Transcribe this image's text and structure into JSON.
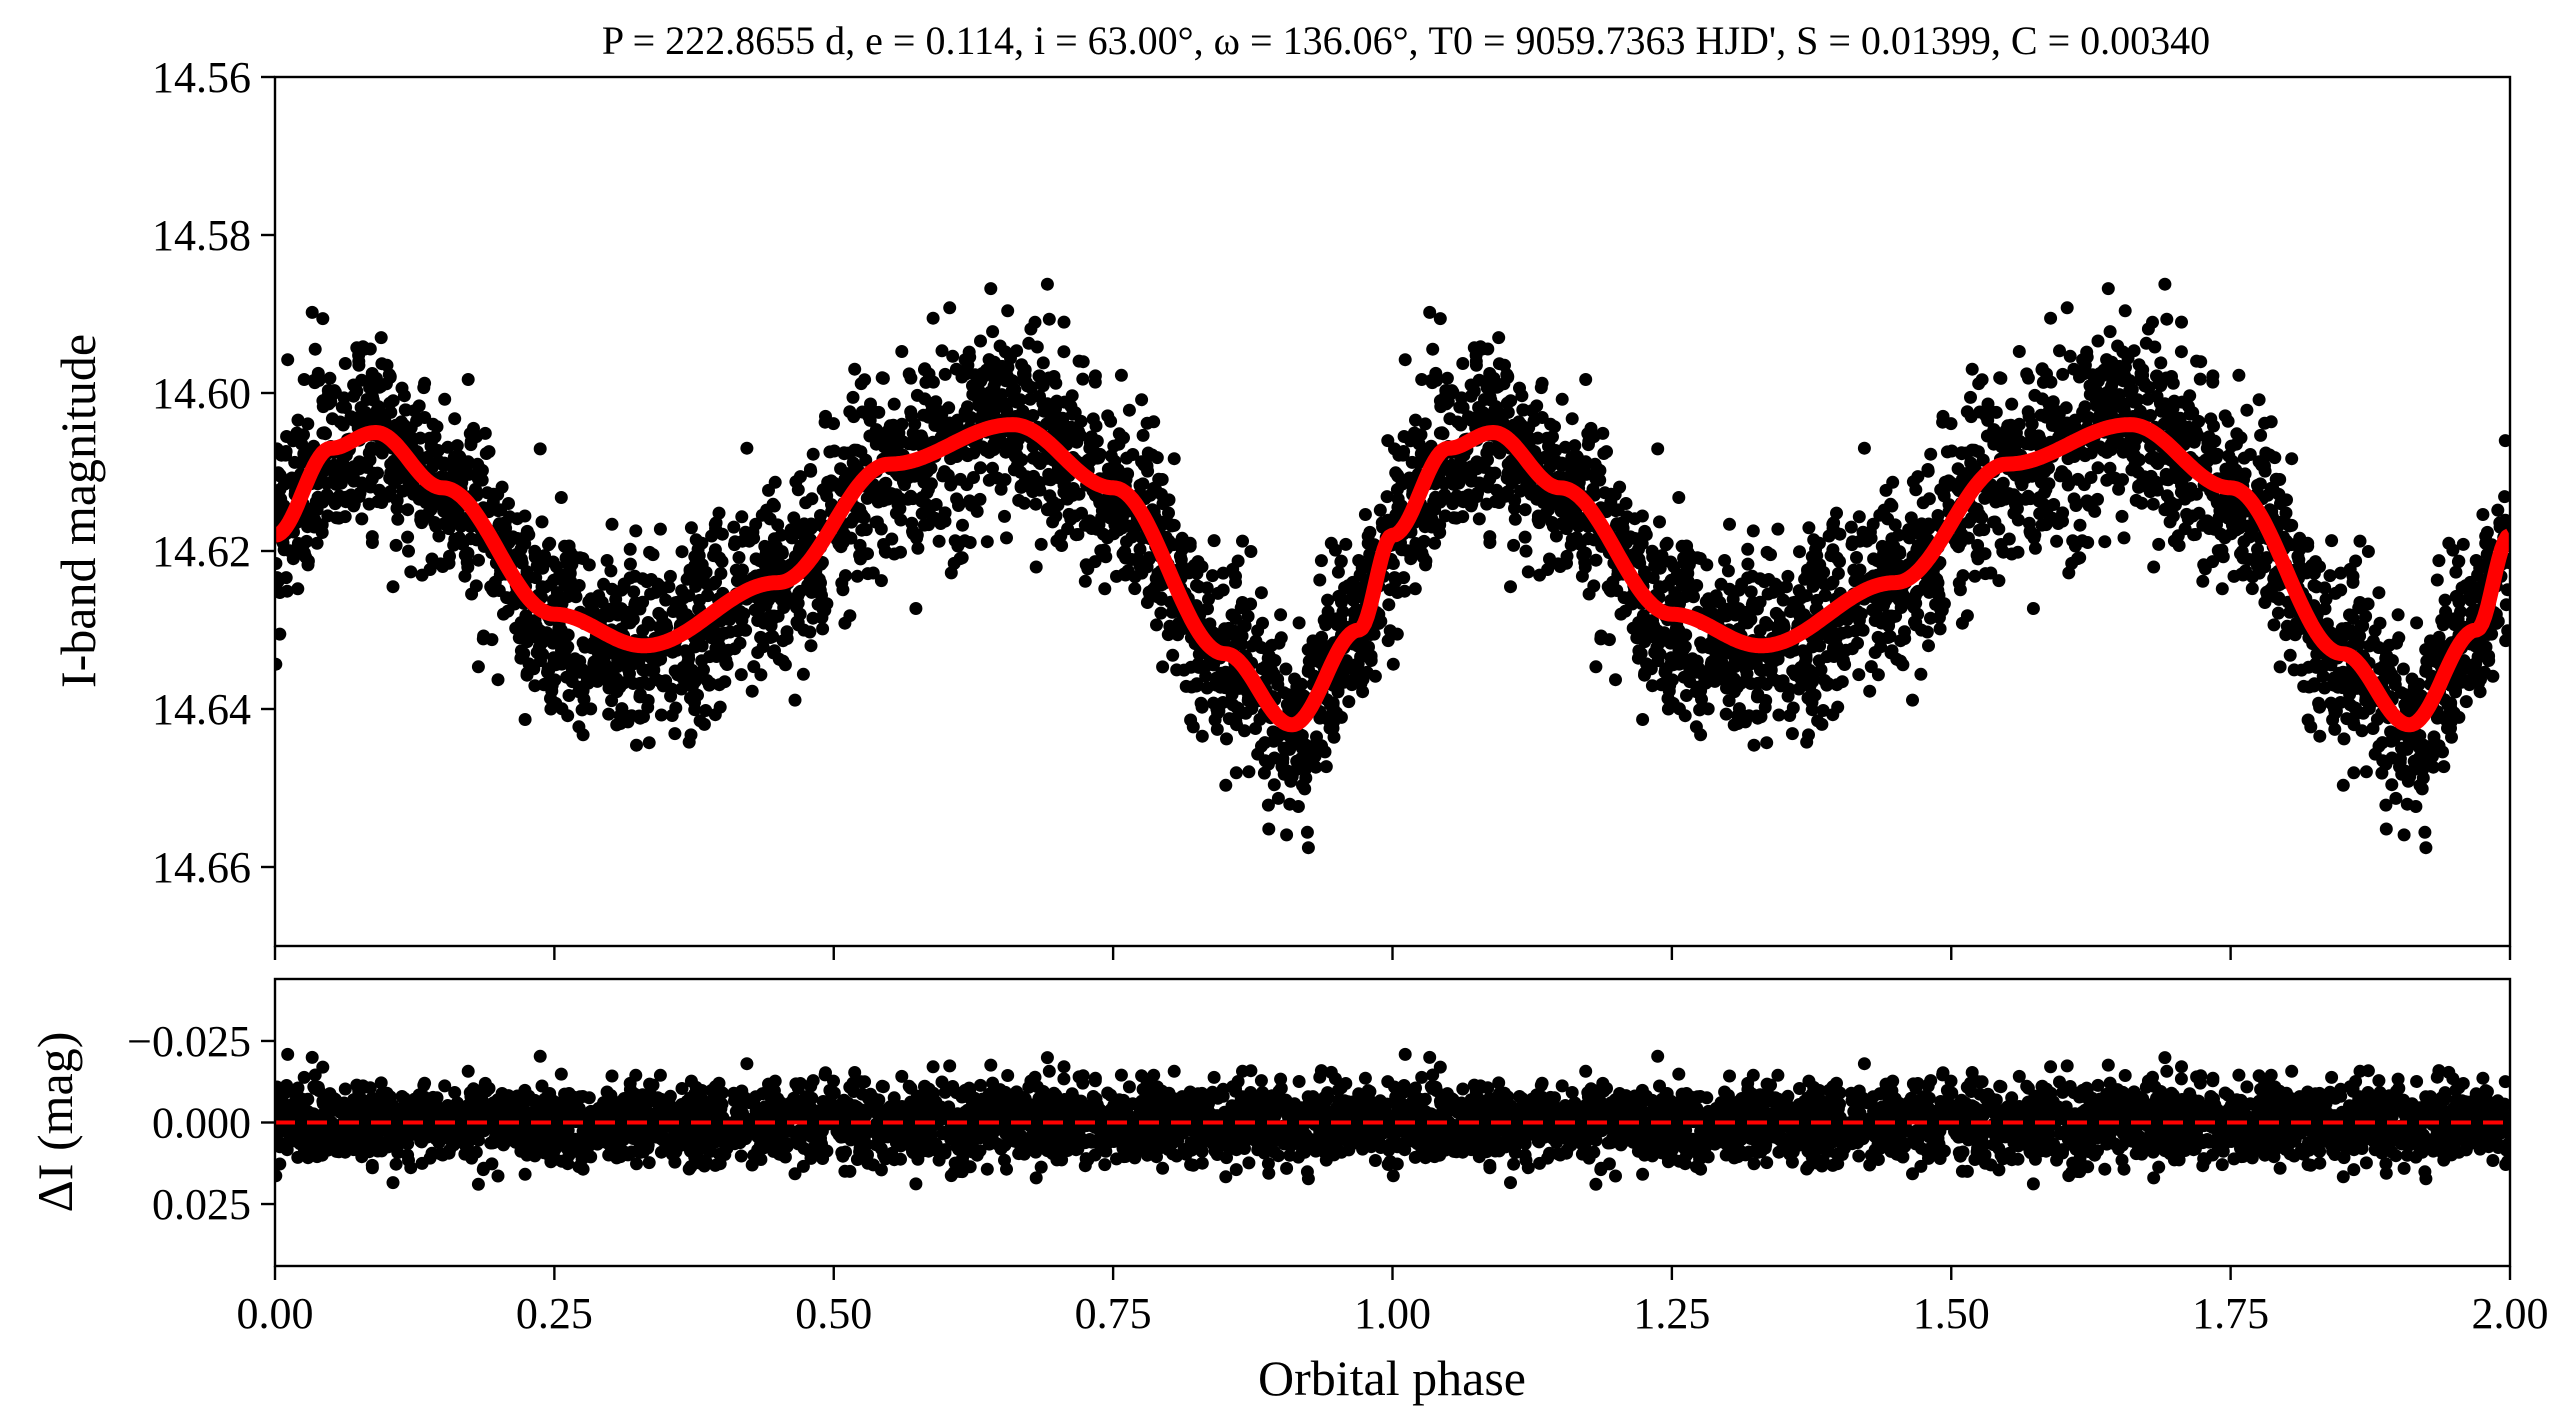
{
  "chart_data": [
    {
      "type": "scatter",
      "panel": "light-curve",
      "title": "P = 222.8655 d, e = 0.114, i = 63.00°, ω = 136.06°, T0 = 9059.7363 HJD', S = 0.01399, C = 0.00340",
      "title_parts": {
        "P": "P = 222.8655 d",
        "e": "e = 0.114",
        "i": "i = 63.00°",
        "omega": "ω = 136.06°",
        "T0": "T0 = 9059.7363 HJD'",
        "S": "S = 0.01399",
        "C": "C = 0.00340"
      },
      "xlabel": "",
      "ylabel": "I-band magnitude",
      "xlim": [
        0.0,
        2.0
      ],
      "ylim": [
        14.67,
        14.56
      ],
      "y_inverted": true,
      "ytick_labels": [
        "14.56",
        "14.58",
        "14.60",
        "14.62",
        "14.64",
        "14.66"
      ],
      "series": [
        {
          "kind": "points",
          "color": "#000000",
          "description_values": "photometric measurements folded on orbital phase, scatter about model ~±0.012 mag",
          "scatter_sigma_mag": 0.006
        },
        {
          "kind": "line",
          "color": "#ff0000",
          "x": [
            0.0,
            0.05,
            0.09,
            0.15,
            0.25,
            0.33,
            0.45,
            0.55,
            0.66,
            0.75,
            0.85,
            0.91,
            0.97,
            1.0
          ],
          "y": [
            14.618,
            14.607,
            14.605,
            14.612,
            14.628,
            14.632,
            14.624,
            14.609,
            14.604,
            14.612,
            14.633,
            14.642,
            14.63,
            14.618
          ]
        }
      ]
    },
    {
      "type": "scatter",
      "panel": "residuals",
      "xlabel": "Orbital phase",
      "ylabel": "ΔI (mag)",
      "xlim": [
        0.0,
        2.0
      ],
      "ylim": [
        0.044,
        -0.044
      ],
      "y_inverted": true,
      "ytick_labels": [
        "-0.025",
        "0.000",
        "0.025"
      ],
      "xtick_labels": [
        "0.00",
        "0.25",
        "0.50",
        "0.75",
        "1.00",
        "1.25",
        "1.50",
        "1.75",
        "2.00"
      ],
      "series": [
        {
          "kind": "points",
          "color": "#000000",
          "description_values": "residuals scattered around zero, roughly within ±0.02 mag"
        },
        {
          "kind": "reference-line",
          "style": "dashed",
          "color": "#ff0000",
          "y": 0.0
        }
      ]
    }
  ]
}
